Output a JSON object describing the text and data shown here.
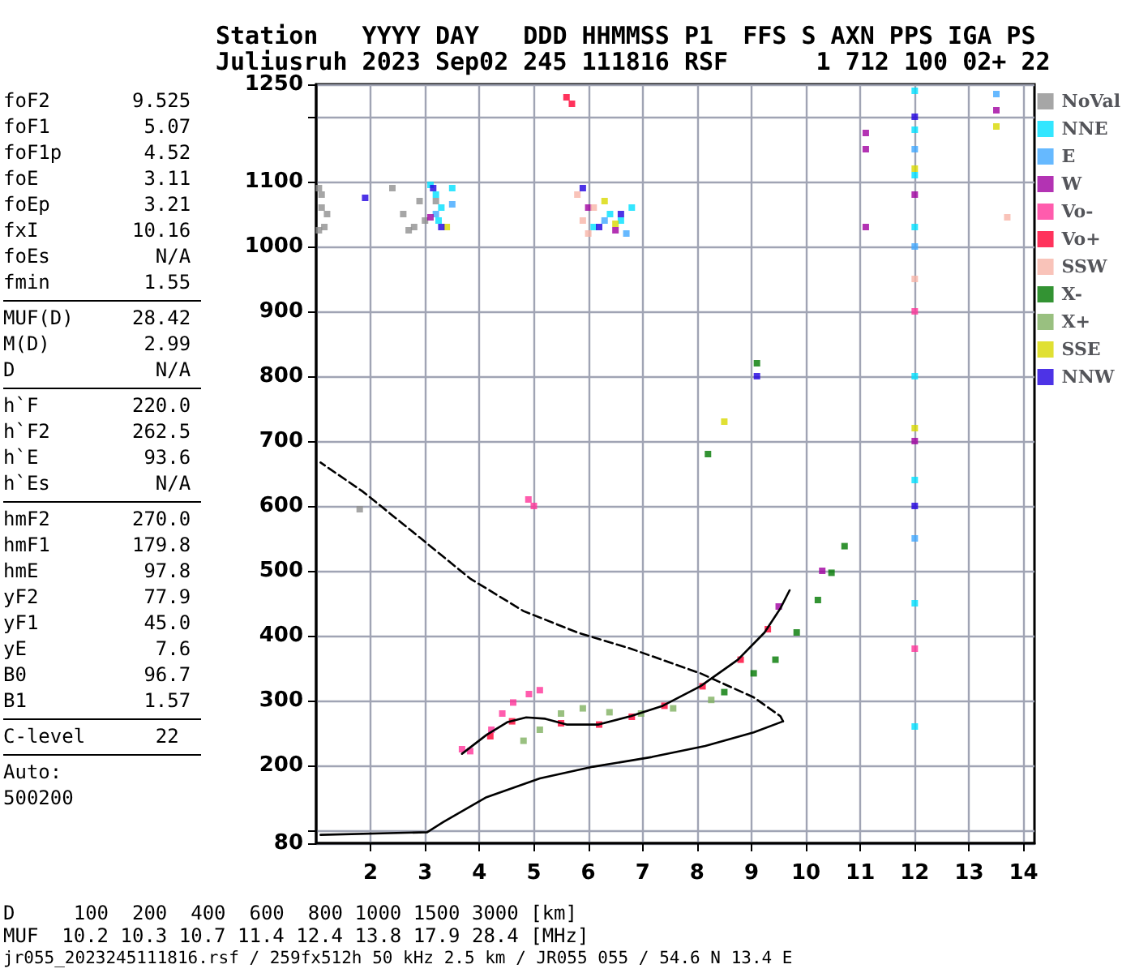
{
  "chart_data": {
    "type": "scatter",
    "marker": "square",
    "grid": true,
    "legend": "right",
    "xlim": [
      1,
      14.2
    ],
    "xticks": [
      2,
      3,
      4,
      5,
      6,
      7,
      8,
      9,
      10,
      11,
      12,
      13,
      14
    ],
    "ylim": [
      80,
      1250
    ],
    "yticks": [
      80,
      {
        "value": 100,
        "label": null
      },
      200,
      300,
      400,
      500,
      600,
      700,
      800,
      900,
      1000,
      1100,
      {
        "value": 1200,
        "label": null
      },
      1250
    ],
    "annotations": [
      "Station   YYYY DAY   DDD HHMMSS P1  FFS S AXN PPS IGA PS\nJuliusruh 2023 Sep02 245 111816 RSF      1 712 100 02+ 22",
      "foF2       9.525\nfoF1        5.07\nfoF1p       4.52\nfoE         3.11\nfoEp        3.21\nfxI        10.16\nfoEs         N/A\nfmin        1.55",
      "MUF(D)     28.42\nM(D)        2.99\nD            N/A",
      "h`F        220.0\nh`F2       262.5\nh`E         93.6\nh`Es         N/A",
      "hmF2       270.0\nhmF1       179.8\nhmE         97.8\nyF2         77.9\nyF1         45.0\nyE           7.6\nB0          96.7\nB1          1.57",
      "C-level      22",
      "Auto:\n500200",
      "D     100  200  400  600  800 1000 1500 3000 [km]\nMUF  10.2 10.3 10.7 11.4 12.4 13.8 17.9 28.4 [MHz]",
      "jr055_2023245111816.rsf / 259fx512h 50 kHz 2.5 km / JR055 055 / 54.6 N 13.4 E"
    ],
    "series": [
      {
        "name": "NoVal",
        "color": "#909090",
        "x": [
          1.05,
          1.1,
          1.15,
          1.05,
          1.1,
          1.2,
          2.4,
          2.6,
          2.8,
          2.9,
          3.0,
          3.2,
          2.7,
          1.8
        ],
        "values": [
          1090,
          1060,
          1030,
          1025,
          1080,
          1050,
          1090,
          1050,
          1030,
          1070,
          1040,
          1070,
          1025,
          595
        ]
      },
      {
        "name": "NNE",
        "color": "#00e0ff",
        "x": [
          3.1,
          3.2,
          3.3,
          3.25,
          3.5,
          6.1,
          6.4,
          6.6,
          6.8,
          12.0,
          12.0,
          12.0,
          12.0,
          12.0,
          12.0,
          12.0,
          12.0
        ],
        "values": [
          1095,
          1080,
          1060,
          1040,
          1090,
          1030,
          1050,
          1040,
          1060,
          1240,
          1180,
          1110,
          1030,
          800,
          640,
          450,
          260
        ]
      },
      {
        "name": "E",
        "color": "#40a8ff",
        "x": [
          3.2,
          3.5,
          6.3,
          6.7,
          12.0,
          12.0,
          12.0,
          13.5
        ],
        "values": [
          1050,
          1065,
          1040,
          1020,
          1150,
          1000,
          550,
          1235
        ]
      },
      {
        "name": "W",
        "color": "#a000a0",
        "x": [
          3.1,
          6.0,
          6.5,
          11.1,
          11.1,
          11.1,
          12.0,
          12.0,
          9.5,
          10.3,
          13.5
        ],
        "values": [
          1045,
          1060,
          1025,
          1175,
          1150,
          1030,
          1080,
          700,
          445,
          500,
          1210
        ]
      },
      {
        "name": "Vo-",
        "color": "#ff3399",
        "x": [
          3.68,
          3.83,
          4.22,
          4.42,
          4.62,
          4.91,
          5.11,
          4.9,
          5.0,
          12.0,
          12.0
        ],
        "values": [
          225,
          222,
          255,
          280,
          297,
          310,
          316,
          610,
          600,
          900,
          380
        ]
      },
      {
        "name": "Vo+",
        "color": "#ff0033",
        "x": [
          4.2,
          4.6,
          5.5,
          6.2,
          6.8,
          7.4,
          8.1,
          8.8,
          9.3,
          5.6,
          5.7
        ],
        "values": [
          245,
          268,
          265,
          263,
          275,
          292,
          322,
          363,
          410,
          1230,
          1220
        ]
      },
      {
        "name": "SSW",
        "color": "#f8b4a8",
        "x": [
          5.8,
          5.9,
          6.0,
          6.1,
          12.0,
          13.7
        ],
        "values": [
          1080,
          1040,
          1020,
          1060,
          950,
          1045
        ]
      },
      {
        "name": "X-",
        "color": "#007800",
        "x": [
          8.5,
          9.04,
          9.44,
          9.83,
          10.22,
          10.47,
          10.71,
          9.1,
          8.2
        ],
        "values": [
          313,
          342,
          363,
          405,
          455,
          497,
          538,
          820,
          680
        ]
      },
      {
        "name": "X+",
        "color": "#80b060",
        "x": [
          4.81,
          5.11,
          5.5,
          5.9,
          6.39,
          6.97,
          7.56,
          8.26
        ],
        "values": [
          238,
          255,
          280,
          288,
          282,
          280,
          288,
          301
        ]
      },
      {
        "name": "SSE",
        "color": "#d8d800",
        "x": [
          3.4,
          6.3,
          6.5,
          12.0,
          12.0,
          13.5,
          8.5
        ],
        "values": [
          1030,
          1070,
          1035,
          1120,
          720,
          1185,
          730
        ]
      },
      {
        "name": "NNW",
        "color": "#2000e0",
        "x": [
          1.9,
          3.15,
          3.3,
          5.9,
          6.2,
          6.6,
          12.0,
          12.0,
          9.1
        ],
        "values": [
          1075,
          1090,
          1030,
          1090,
          1030,
          1050,
          1200,
          600,
          800
        ]
      },
      {
        "type": "line",
        "color": "#000000",
        "marker": "none",
        "line_style": "solid",
        "x": [
          3.68,
          4.13,
          4.52,
          4.86,
          5.21,
          5.6,
          6.19,
          6.78,
          7.37,
          8.06,
          8.75,
          9.24,
          9.53,
          9.7
        ],
        "values": [
          218,
          247,
          267,
          274,
          272,
          263,
          263,
          276,
          292,
          322,
          363,
          405,
          442,
          470
        ]
      },
      {
        "type": "line",
        "color": "#000000",
        "marker": "none",
        "line_style": "solid",
        "x": [
          1.08,
          3.04,
          3.34,
          4.13,
          5.11,
          6.09,
          7.17,
          8.15,
          9.04,
          9.58
        ],
        "values": [
          93,
          97,
          113,
          151,
          180,
          198,
          213,
          230,
          251,
          268
        ]
      },
      {
        "type": "line",
        "color": "#000000",
        "marker": "none",
        "line_style": "dashed",
        "x": [
          9.58,
          9.53,
          9.04,
          8.06,
          6.78,
          5.8,
          4.81,
          3.83,
          2.85,
          1.86,
          1.08
        ],
        "values": [
          268,
          276,
          305,
          342,
          380,
          405,
          438,
          488,
          555,
          622,
          667
        ]
      }
    ]
  }
}
